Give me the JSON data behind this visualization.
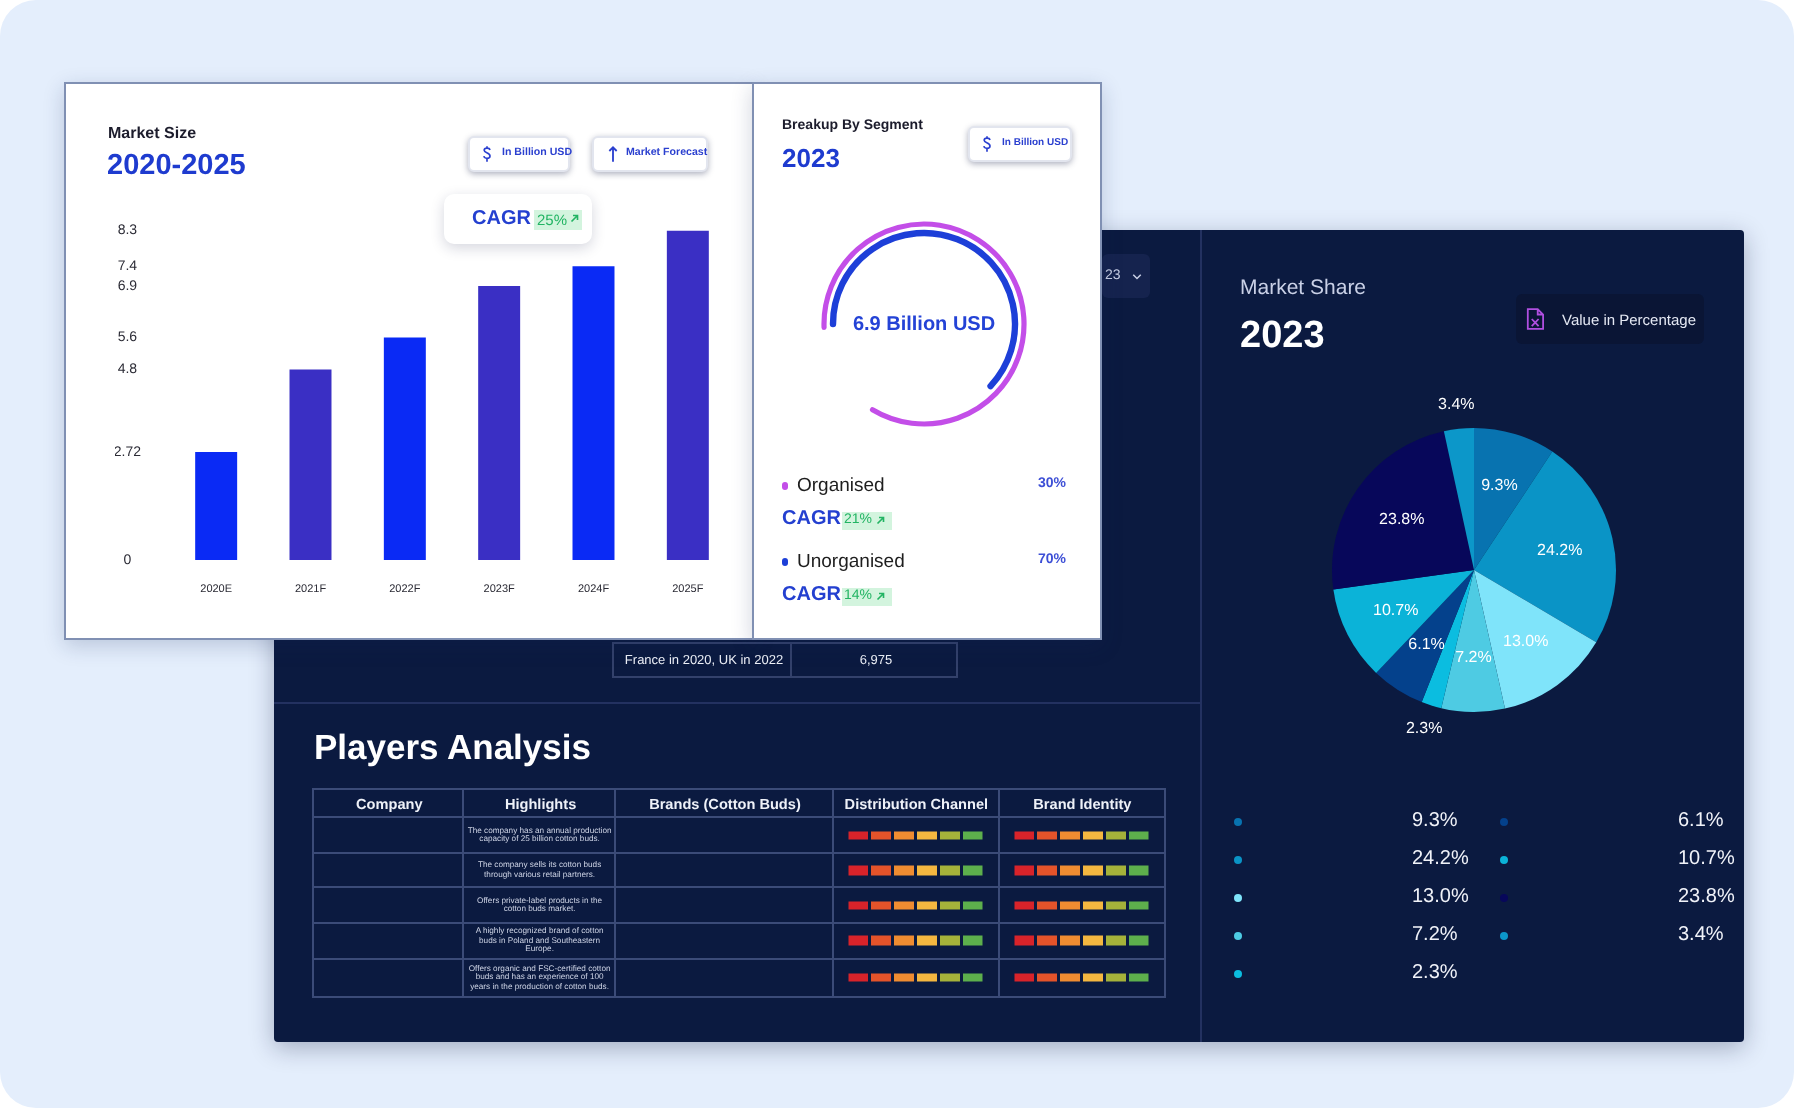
{
  "chart_data": [
    {
      "type": "bar",
      "title": "Market Size",
      "subtitle": "2020-2025",
      "categories": [
        "2020E",
        "2021F",
        "2022F",
        "2023F",
        "2024F",
        "2025F"
      ],
      "values": [
        2.72,
        4.8,
        5.6,
        6.9,
        7.4,
        8.3
      ],
      "colors": [
        "#0a2af5",
        "#3a2fc4",
        "#0a2af5",
        "#3a2fc4",
        "#0a2af5",
        "#3a2fc4"
      ],
      "ylim": [
        0,
        8.3
      ],
      "yticks": [
        0,
        2.72,
        4.8,
        5.6,
        6.9,
        7.4,
        8.3
      ],
      "annotations": [
        "In Billion USD",
        "Market Forecast",
        "CAGR",
        "25%"
      ]
    },
    {
      "type": "other",
      "title": "Breakup By Segment",
      "subtitle": "2023",
      "categories": [
        "Organised",
        "Unorganised"
      ],
      "colors": [
        "#c34ee8",
        "#1d3fd8"
      ],
      "value_labels": [
        "30%",
        "70%"
      ],
      "annotations": [
        "In Billion USD",
        "6.9 Billion USD",
        "CAGR",
        "21%",
        "CAGR",
        "14%"
      ]
    },
    {
      "type": "other",
      "annotations": [
        "23",
        "France in 2020, UK in 2022",
        "6,975"
      ]
    },
    {
      "type": "pie",
      "title": "Market Share",
      "subtitle": "2023",
      "categories": [
        null,
        null,
        null,
        null,
        null,
        null,
        null,
        null,
        null
      ],
      "values": [
        9.3,
        24.2,
        13.0,
        7.2,
        2.3,
        6.1,
        10.7,
        23.8,
        3.4
      ],
      "value_labels": [
        "9.3%",
        "24.2%",
        "13.0%",
        "7.2%",
        "2.3%",
        "6.1%",
        "10.7%",
        "23.8%",
        "3.4%"
      ],
      "colors": [
        "#0873b0",
        "#0a94c6",
        "#7fe4fa",
        "#4ecbe3",
        "#0bbde0",
        "#04418c",
        "#0bb3d8",
        "#07075a",
        "#0c97c9"
      ],
      "annotations": [
        "Value in Percentage"
      ]
    },
    {
      "type": "other",
      "title": "Players Analysis",
      "categories": [
        "Company",
        "Highlights",
        "Brands (Cotton Buds)",
        "Distribution Channel",
        "Brand Identity"
      ],
      "y_categories": [
        null,
        null,
        null,
        null,
        null
      ],
      "annotations": [
        "The company has an annual production capacity of 25 billion cotton buds.",
        "The company sells its cotton buds through various retail partners.",
        "Offers private-label products in the cotton buds market.",
        "A highly recognized brand of cotton buds in Poland and Southeastern Europe.",
        "Offers organic and FSC-certified cotton buds and has an experience of 100 years in the production of cotton buds."
      ]
    }
  ]
}
